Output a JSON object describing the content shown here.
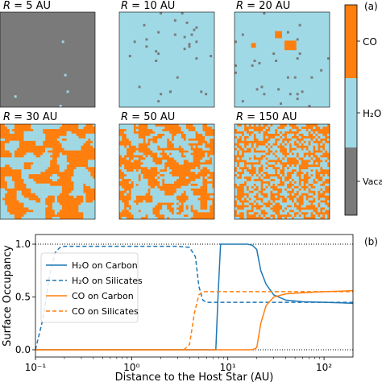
{
  "panel_a": {
    "label": "(a)",
    "colorbar": {
      "labels": [
        "CO",
        "H₂O",
        "Vacant"
      ],
      "colors": {
        "co": "#ff7f0e",
        "h2o": "#9fd9e6",
        "vacant": "#7a7a7a"
      }
    },
    "panels": [
      {
        "title_var": "R",
        "title_rest": " = 5 AU",
        "dominant": "vacant",
        "co": 0.0,
        "h2o": 0.003
      },
      {
        "title_var": "R",
        "title_rest": " = 10 AU",
        "dominant": "h2o",
        "co": 0.0,
        "vacant": 0.02
      },
      {
        "title_var": "R",
        "title_rest": " = 20 AU",
        "dominant": "h2o",
        "co": 0.05,
        "vacant": 0.02
      },
      {
        "title_var": "R",
        "title_rest": " = 30 AU",
        "dominant": "co",
        "co": 0.55,
        "vacant": 0.0
      },
      {
        "title_var": "R",
        "title_rest": " = 50 AU",
        "dominant": "co",
        "co": 0.55,
        "vacant": 0.0
      },
      {
        "title_var": "R",
        "title_rest": " = 150 AU",
        "dominant": "co",
        "co": 0.55,
        "vacant": 0.0
      }
    ]
  },
  "chart_data": {
    "type": "line",
    "panel_label": "(b)",
    "xlabel": "Distance to the Host Star (AU)",
    "ylabel": "Surface Occupancy",
    "xscale": "log",
    "xlim": [
      0.1,
      200
    ],
    "ylim": [
      0,
      1.0
    ],
    "xticks": [
      {
        "value": 0.1,
        "label": "10⁻¹"
      },
      {
        "value": 1,
        "label": "10⁰"
      },
      {
        "value": 10,
        "label": "10¹"
      },
      {
        "value": 100,
        "label": "10²"
      }
    ],
    "yticks": [
      0.0,
      0.5,
      1.0
    ],
    "ytick_labels": [
      "0.0",
      "0.5",
      "1.0"
    ],
    "reference_lines": [
      0,
      1
    ],
    "legend_position": "center-left",
    "series": [
      {
        "name": "H₂O on Carbon",
        "color": "#1f77b4",
        "dash": "solid",
        "x": [
          0.1,
          7.5,
          7.9,
          8.4,
          16,
          18,
          20,
          22,
          25,
          30,
          40,
          60,
          100,
          150,
          200
        ],
        "y": [
          0.0,
          0.0,
          0.5,
          1.0,
          1.0,
          0.99,
          0.95,
          0.75,
          0.62,
          0.52,
          0.47,
          0.455,
          0.45,
          0.445,
          0.44
        ]
      },
      {
        "name": "H₂O on Silicates",
        "color": "#1f77b4",
        "dash": "dashed",
        "x": [
          0.1,
          0.12,
          0.14,
          0.16,
          0.18,
          0.2,
          1,
          3,
          4,
          4.6,
          5,
          5.5,
          6,
          8,
          20,
          50,
          100,
          200
        ],
        "y": [
          0.0,
          0.3,
          0.7,
          0.92,
          0.97,
          0.98,
          0.98,
          0.98,
          0.97,
          0.88,
          0.6,
          0.47,
          0.45,
          0.45,
          0.45,
          0.45,
          0.45,
          0.45
        ]
      },
      {
        "name": "CO on Carbon",
        "color": "#ff7f0e",
        "dash": "solid",
        "x": [
          0.1,
          18,
          20,
          22,
          25,
          30,
          40,
          60,
          100,
          150,
          200
        ],
        "y": [
          0.0,
          0.0,
          0.02,
          0.25,
          0.42,
          0.5,
          0.53,
          0.54,
          0.55,
          0.555,
          0.56
        ]
      },
      {
        "name": "CO on Silicates",
        "color": "#ff7f0e",
        "dash": "dashed",
        "x": [
          0.1,
          3.5,
          4.0,
          4.5,
          5.0,
          5.5,
          6,
          8,
          20,
          50,
          100,
          200
        ],
        "y": [
          0.0,
          0.0,
          0.05,
          0.35,
          0.52,
          0.55,
          0.55,
          0.55,
          0.55,
          0.55,
          0.55,
          0.55
        ]
      }
    ]
  }
}
